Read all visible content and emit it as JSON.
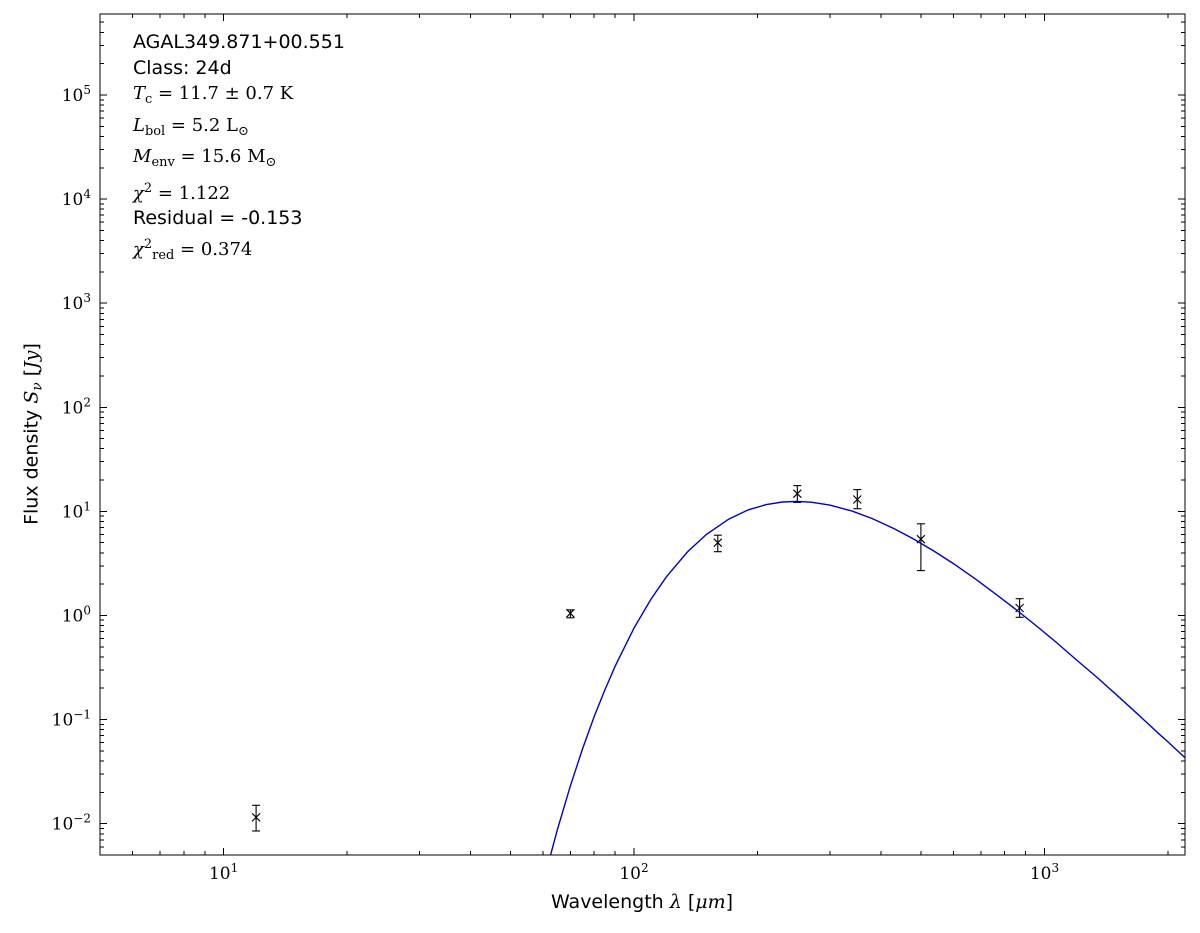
{
  "figure": {
    "background": "#ffffff"
  },
  "chart_data": {
    "type": "scatter",
    "title": "",
    "xscale": "log",
    "yscale": "log",
    "xlim": [
      5,
      2200
    ],
    "ylim": [
      0.005,
      600000
    ],
    "grid": false,
    "frame_color": "#000000",
    "xlabel_segments": [
      {
        "t": "Wavelength "
      },
      {
        "t": "λ",
        "i": true
      },
      {
        "t": " ["
      },
      {
        "t": "μm",
        "i": true
      },
      {
        "t": "]"
      }
    ],
    "ylabel_segments": [
      {
        "t": "Flux density "
      },
      {
        "t": "S",
        "i": true
      },
      {
        "t": "ν",
        "i": true,
        "sub": true
      },
      {
        "t": " ["
      },
      {
        "t": "Jy",
        "i": true
      },
      {
        "t": "]"
      }
    ],
    "x_major_ticks": [
      {
        "value": 10,
        "exp": "1"
      },
      {
        "value": 100,
        "exp": "2"
      },
      {
        "value": 1000,
        "exp": "3"
      }
    ],
    "y_major_ticks": [
      {
        "value": 0.01,
        "exp": "−2"
      },
      {
        "value": 0.1,
        "exp": "−1"
      },
      {
        "value": 1,
        "exp": "0"
      },
      {
        "value": 10,
        "exp": "1"
      },
      {
        "value": 100,
        "exp": "2"
      },
      {
        "value": 1000,
        "exp": "3"
      },
      {
        "value": 10000,
        "exp": "4"
      },
      {
        "value": 100000,
        "exp": "5"
      }
    ],
    "series": [
      {
        "name": "photometry",
        "type": "scatter",
        "marker": "x",
        "color": "#000000",
        "points": [
          {
            "x": 12,
            "y": 0.0115,
            "yerr_minus": 0.003,
            "yerr_plus": 0.0035
          },
          {
            "x": 70,
            "y": 1.05,
            "yerr_minus": 0.1,
            "yerr_plus": 0.08
          },
          {
            "x": 160,
            "y": 5.0,
            "yerr_minus": 0.9,
            "yerr_plus": 0.9
          },
          {
            "x": 250,
            "y": 14.8,
            "yerr_minus": 2.6,
            "yerr_plus": 2.9
          },
          {
            "x": 350,
            "y": 13.0,
            "yerr_minus": 2.4,
            "yerr_plus": 3.2
          },
          {
            "x": 500,
            "y": 5.4,
            "yerr_minus": 2.7,
            "yerr_plus": 2.2
          },
          {
            "x": 870,
            "y": 1.18,
            "yerr_minus": 0.22,
            "yerr_plus": 0.27
          }
        ]
      },
      {
        "name": "greybody-fit",
        "type": "line",
        "color": "#0000cc",
        "points": [
          [
            55,
            0.00064
          ],
          [
            60,
            0.00266
          ],
          [
            65,
            0.00864
          ],
          [
            70,
            0.0231
          ],
          [
            75,
            0.0528
          ],
          [
            80,
            0.107
          ],
          [
            85,
            0.194
          ],
          [
            90,
            0.326
          ],
          [
            100,
            0.756
          ],
          [
            110,
            1.435
          ],
          [
            120,
            2.358
          ],
          [
            135,
            4.084
          ],
          [
            150,
            6.0
          ],
          [
            170,
            8.42
          ],
          [
            190,
            10.35
          ],
          [
            210,
            11.63
          ],
          [
            230,
            12.3
          ],
          [
            250,
            12.47
          ],
          [
            270,
            12.26
          ],
          [
            300,
            11.49
          ],
          [
            340,
            10.06
          ],
          [
            380,
            8.55
          ],
          [
            430,
            6.84
          ],
          [
            480,
            5.43
          ],
          [
            540,
            4.12
          ],
          [
            600,
            3.15
          ],
          [
            680,
            2.23
          ],
          [
            760,
            1.61
          ],
          [
            850,
            1.15
          ],
          [
            950,
            0.81
          ],
          [
            1070,
            0.55
          ],
          [
            1200,
            0.37
          ],
          [
            1350,
            0.25
          ],
          [
            1520,
            0.164
          ],
          [
            1700,
            0.11
          ],
          [
            1900,
            0.073
          ],
          [
            2000,
            0.061
          ],
          [
            2100,
            0.051
          ],
          [
            2200,
            0.043
          ]
        ]
      }
    ],
    "annotations": {
      "lines": [
        {
          "font": "sans",
          "segments": [
            {
              "t": "AGAL349.871+00.551"
            }
          ]
        },
        {
          "font": "sans",
          "segments": [
            {
              "t": "Class: 24d"
            }
          ]
        },
        {
          "font": "serif",
          "segments": [
            {
              "t": "T",
              "i": true
            },
            {
              "t": "c",
              "sub": true
            },
            {
              "t": " = 11.7 ± 0.7 K"
            }
          ]
        },
        {
          "font": "serif",
          "segments": [
            {
              "t": "L",
              "i": true
            },
            {
              "t": "bol",
              "sub": true
            },
            {
              "t": " = 5.2 L"
            },
            {
              "t": "⊙",
              "sub": true
            }
          ]
        },
        {
          "font": "serif",
          "segments": [
            {
              "t": "M",
              "i": true
            },
            {
              "t": "env",
              "sub": true
            },
            {
              "t": " = 15.6 M"
            },
            {
              "t": "⊙",
              "sub": true
            }
          ]
        },
        {
          "font": "serif",
          "segments": [
            {
              "t": "χ",
              "i": true
            },
            {
              "t": "2",
              "sup": true
            },
            {
              "t": " = 1.122"
            }
          ]
        },
        {
          "font": "sans",
          "segments": [
            {
              "t": "Residual = -0.153"
            }
          ]
        },
        {
          "font": "serif",
          "segments": [
            {
              "t": "χ",
              "i": true
            },
            {
              "t": "2",
              "sup": true
            },
            {
              "t": "red",
              "sub": true
            },
            {
              "t": " = 0.374"
            }
          ]
        }
      ]
    }
  }
}
